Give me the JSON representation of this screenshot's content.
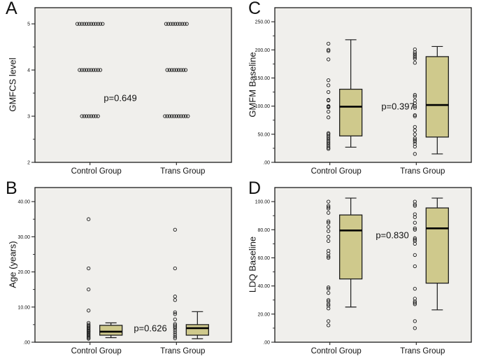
{
  "figure": {
    "background": "#ffffff",
    "plot_background": "#f0efec",
    "box_fill": "#cfc98c",
    "frame_color": "#1c1c1c",
    "axis_color": "#222222",
    "point_color": "#1a1a1a",
    "median_color": "#000000"
  },
  "chart_data": [
    {
      "panel": "A",
      "type": "scatter",
      "title": "",
      "ylabel": "GMFCS level",
      "xlabel": "",
      "p_label": "p=0.649",
      "categories": [
        "Control Group",
        "Trans Group"
      ],
      "ylim": [
        2,
        5.35
      ],
      "yticks": [
        {
          "v": 5,
          "label": "5"
        },
        {
          "v": 4,
          "label": "4"
        },
        {
          "v": 3,
          "label": "3"
        },
        {
          "v": 2,
          "label": "2"
        }
      ],
      "rows": [
        {
          "group": 0,
          "level": 5,
          "count": 12
        },
        {
          "group": 0,
          "level": 4,
          "count": 10
        },
        {
          "group": 0,
          "level": 3,
          "count": 8
        },
        {
          "group": 1,
          "level": 5,
          "count": 10
        },
        {
          "group": 1,
          "level": 4,
          "count": 9
        },
        {
          "group": 1,
          "level": 3,
          "count": 11
        }
      ]
    },
    {
      "panel": "B",
      "type": "box",
      "title": "",
      "ylabel": "Age (years)",
      "xlabel": "",
      "p_label": "p=0.626",
      "categories": [
        "Control Group",
        "Trans Group"
      ],
      "ylim": [
        0,
        44
      ],
      "yticks": [
        {
          "v": 40,
          "label": "40.00"
        },
        {
          "v": 30,
          "label": "30.00"
        },
        {
          "v": 20,
          "label": "20.00"
        },
        {
          "v": 10,
          "label": "10.00"
        },
        {
          "v": 0,
          "label": ".00"
        }
      ],
      "groups": [
        {
          "name": "Control Group",
          "box": {
            "whisker_low": 1.3,
            "q1": 2,
            "median": 3,
            "q3": 4.8,
            "whisker_high": 5.5
          },
          "points": [
            35,
            21,
            15,
            9,
            5.5,
            5,
            4.7,
            4.4,
            4.1,
            3.8,
            3.5,
            3.2,
            3,
            2.7,
            2.4,
            2.1,
            1.8,
            1.5,
            1.2,
            1
          ]
        },
        {
          "name": "Trans Group",
          "box": {
            "whisker_low": 1,
            "q1": 2,
            "median": 4,
            "q3": 5,
            "whisker_high": 8.7
          },
          "points": [
            32,
            21,
            13,
            12,
            8.5,
            8,
            6.5,
            5.2,
            4.8,
            4.4,
            4,
            3.4,
            2.8,
            2.2,
            1.6,
            1.1
          ]
        }
      ]
    },
    {
      "panel": "C",
      "type": "box",
      "title": "",
      "ylabel": "GMFM Baseline",
      "xlabel": "",
      "p_label": "p=0.397",
      "categories": [
        "Control Group",
        "Trans Group"
      ],
      "ylim": [
        0,
        275
      ],
      "yticks": [
        {
          "v": 250,
          "label": "250.00"
        },
        {
          "v": 200,
          "label": "200.00"
        },
        {
          "v": 150,
          "label": "150.00"
        },
        {
          "v": 100,
          "label": "100.00"
        },
        {
          "v": 50,
          "label": "50.00"
        },
        {
          "v": 0,
          "label": ".00"
        }
      ],
      "groups": [
        {
          "name": "Control Group",
          "box": {
            "whisker_low": 27,
            "q1": 47,
            "median": 99,
            "q3": 130,
            "whisker_high": 218
          },
          "points": [
            211,
            200,
            198,
            183,
            146,
            137,
            125,
            111,
            110,
            100,
            99,
            98,
            90,
            80,
            52,
            50,
            47,
            44,
            41,
            38,
            35,
            32,
            29,
            26,
            24
          ]
        },
        {
          "name": "Trans Group",
          "box": {
            "whisker_low": 15,
            "q1": 45,
            "median": 102,
            "q3": 188,
            "whisker_high": 206
          },
          "points": [
            201,
            196,
            193,
            190,
            187,
            184,
            177,
            120,
            117,
            110,
            105,
            100,
            97,
            84,
            82,
            63,
            57,
            50,
            43,
            40,
            37,
            33,
            28,
            15
          ]
        }
      ]
    },
    {
      "panel": "D",
      "type": "box",
      "title": "",
      "ylabel": "LDQ Baseline",
      "xlabel": "",
      "p_label": "p=0.830",
      "categories": [
        "Control Group",
        "Trans Group"
      ],
      "ylim": [
        0,
        110
      ],
      "yticks": [
        {
          "v": 100,
          "label": "100.00"
        },
        {
          "v": 80,
          "label": "80.00"
        },
        {
          "v": 60,
          "label": "60.00"
        },
        {
          "v": 40,
          "label": "40.00"
        },
        {
          "v": 20,
          "label": "20.00"
        },
        {
          "v": 0,
          "label": ".00"
        }
      ],
      "groups": [
        {
          "name": "Control Group",
          "box": {
            "whisker_low": 25,
            "q1": 45,
            "median": 79.5,
            "q3": 90.5,
            "whisker_high": 102.5
          },
          "points": [
            100,
            97,
            96,
            95,
            92,
            86,
            85,
            82,
            79,
            75,
            72,
            65,
            63,
            61,
            60,
            39,
            38,
            35,
            30,
            29,
            27,
            26,
            24,
            15,
            12
          ]
        },
        {
          "name": "Trans Group",
          "box": {
            "whisker_low": 23,
            "q1": 42,
            "median": 81,
            "q3": 95.5,
            "whisker_high": 102.5
          },
          "points": [
            100,
            98,
            97,
            91,
            89,
            85,
            81,
            80,
            74,
            73,
            72,
            70,
            62,
            54,
            38,
            31,
            29,
            28,
            27,
            15,
            10
          ]
        }
      ]
    }
  ]
}
